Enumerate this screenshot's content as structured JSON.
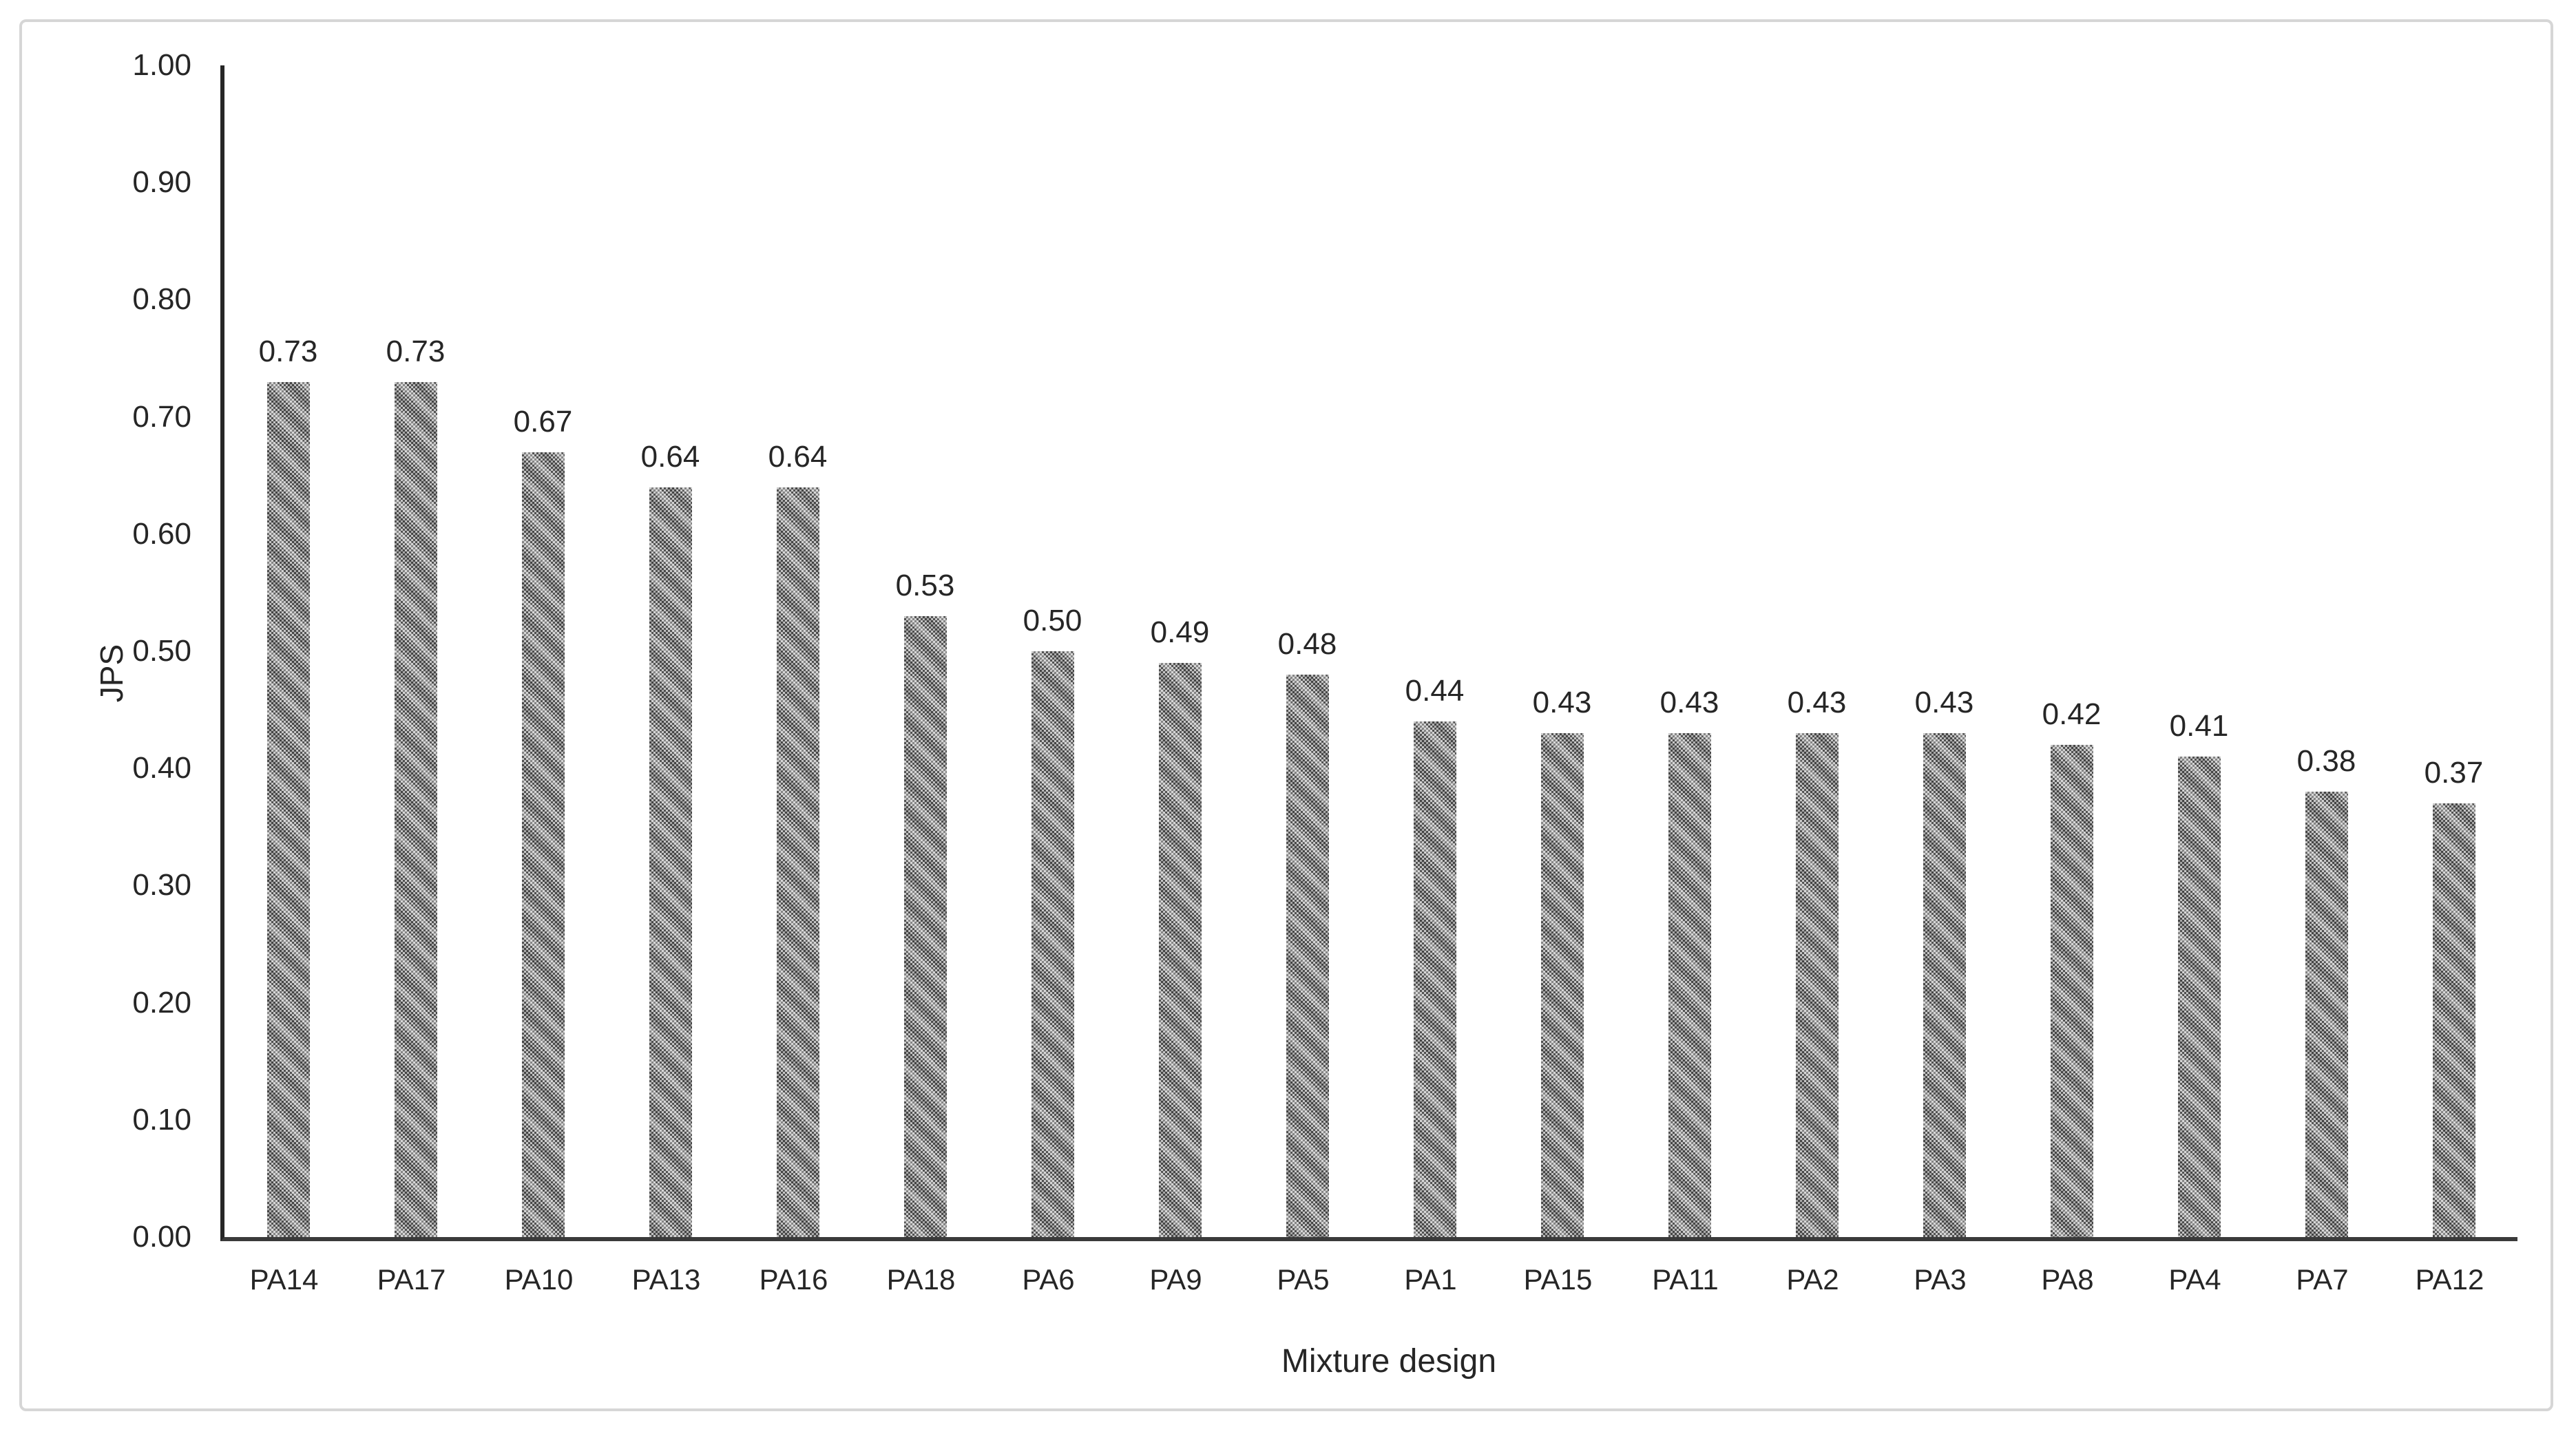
{
  "chart_data": {
    "type": "bar",
    "title": "",
    "xlabel": "Mixture design",
    "ylabel": "JPS",
    "categories": [
      "PA14",
      "PA17",
      "PA10",
      "PA13",
      "PA16",
      "PA18",
      "PA6",
      "PA9",
      "PA5",
      "PA1",
      "PA15",
      "PA11",
      "PA2",
      "PA3",
      "PA8",
      "PA4",
      "PA7",
      "PA12"
    ],
    "values": [
      0.73,
      0.73,
      0.67,
      0.64,
      0.64,
      0.53,
      0.5,
      0.49,
      0.48,
      0.44,
      0.43,
      0.43,
      0.43,
      0.43,
      0.42,
      0.41,
      0.38,
      0.37
    ],
    "data_labels": [
      "0.73",
      "0.73",
      "0.67",
      "0.64",
      "0.64",
      "0.53",
      "0.50",
      "0.49",
      "0.48",
      "0.44",
      "0.43",
      "0.43",
      "0.43",
      "0.43",
      "0.42",
      "0.41",
      "0.38",
      "0.37"
    ],
    "ylim": [
      0.0,
      1.0
    ],
    "ytick_step": 0.1,
    "yticks": [
      "0.00",
      "0.10",
      "0.20",
      "0.30",
      "0.40",
      "0.50",
      "0.60",
      "0.70",
      "0.80",
      "0.90",
      "1.00"
    ],
    "grid": false,
    "legend_position": "none",
    "bar_fill_color": "#8f8f8f",
    "bar_pattern": "diagonal-dot-hatch",
    "axis_color": "#262626",
    "text_color": "#262626",
    "frame_border_color": "#d6d6d6",
    "background_color": "#ffffff"
  }
}
